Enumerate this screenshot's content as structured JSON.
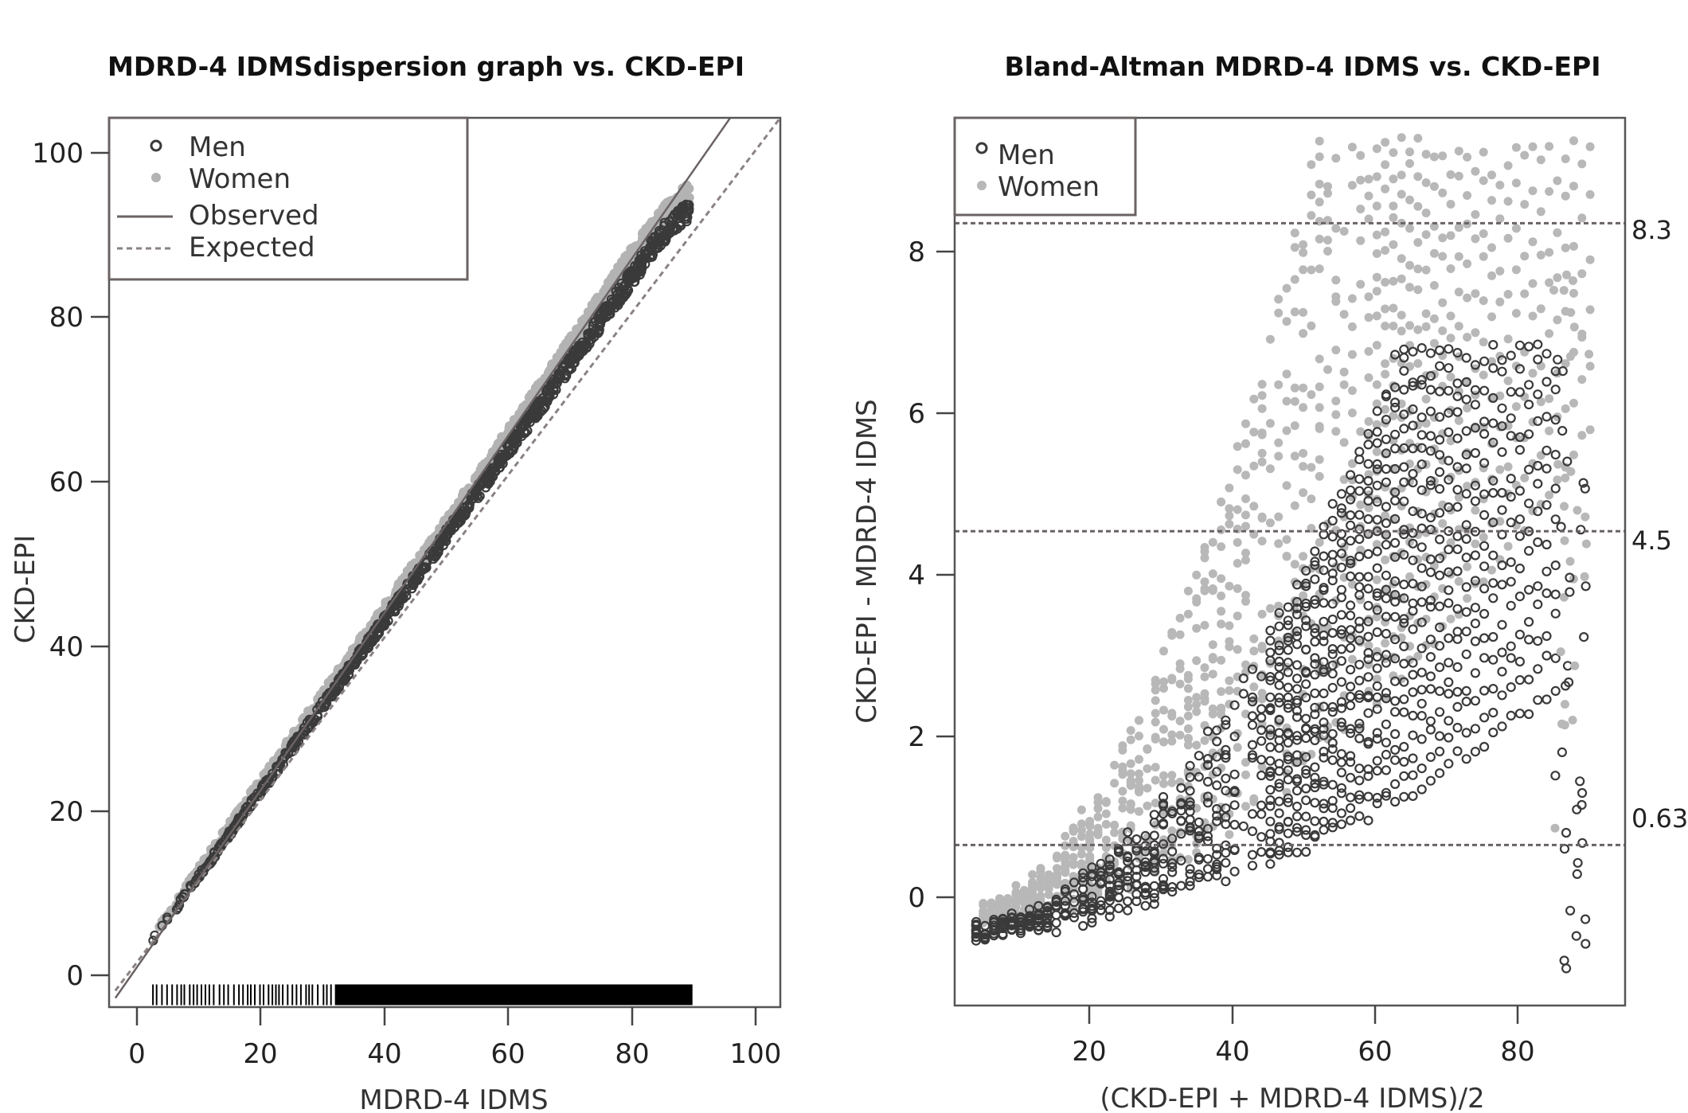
{
  "chart_data": [
    {
      "type": "scatter",
      "title": "MDRD-4 IDMSdispersion graph vs. CKD-EPI",
      "xlabel": "MDRD-4 IDMS",
      "ylabel": "CKD-EPI",
      "xlim": [
        -3,
        104
      ],
      "ylim": [
        -4,
        104
      ],
      "xticks": [
        0,
        20,
        40,
        60,
        80,
        100
      ],
      "yticks": [
        0,
        20,
        40,
        60,
        80,
        100
      ],
      "xtick_labels": [
        "0",
        "20",
        "40",
        "60",
        "80",
        "100"
      ],
      "ytick_labels": [
        "0",
        "20",
        "40",
        "60",
        "80",
        "100"
      ],
      "legend": {
        "position": "top-left",
        "entries": [
          {
            "label": "Men",
            "marker": "open-circle"
          },
          {
            "label": "Women",
            "marker": "filled-circle"
          },
          {
            "label": "Observed",
            "marker": "solid-line"
          },
          {
            "label": "Expected",
            "marker": "dashed-line"
          }
        ]
      },
      "series": [
        {
          "name": "Women",
          "color": "#b3b3b3",
          "x": [
            4,
            10,
            20,
            30,
            40,
            50,
            60,
            70,
            80,
            85,
            89
          ],
          "y": [
            4.6,
            11.2,
            22.0,
            32.6,
            43.2,
            53.8,
            64.6,
            75.5,
            86.6,
            91.5,
            94.5
          ]
        },
        {
          "name": "Men",
          "color": "#3a3a3a",
          "x": [
            4,
            10,
            20,
            30,
            40,
            50,
            60,
            70,
            80,
            85,
            89
          ],
          "y": [
            4.2,
            10.5,
            21.0,
            31.5,
            42.0,
            52.5,
            63.0,
            73.6,
            84.3,
            89.7,
            92.5
          ]
        },
        {
          "name": "Observed",
          "color": "#6b6363",
          "x": [
            -2,
            104
          ],
          "y": [
            -2.9,
            112.7
          ]
        },
        {
          "name": "Expected",
          "color": "#8a8282",
          "x": [
            -2,
            104
          ],
          "y": [
            -2,
            104
          ]
        }
      ],
      "rug": {
        "x_start": 4,
        "x_end": 90,
        "dense_from": 33,
        "y": -2.5,
        "color": "#000000"
      }
    },
    {
      "type": "scatter",
      "title": "Bland-Altman MDRD-4 IDMS vs. CKD-EPI",
      "xlabel": "(CKD-EPI + MDRD-4 IDMS)/2",
      "ylabel": "CKD-EPI - MDRD-4 IDMS",
      "xlim": [
        1,
        95
      ],
      "ylim": [
        -1.35,
        9.6
      ],
      "xticks": [
        20,
        40,
        60,
        80
      ],
      "yticks": [
        0,
        2,
        4,
        6,
        8
      ],
      "xtick_labels": [
        "20",
        "40",
        "60",
        "80"
      ],
      "ytick_labels": [
        "0",
        "2",
        "4",
        "6",
        "8"
      ],
      "legend": {
        "position": "top-left",
        "entries": [
          {
            "label": "Men",
            "marker": "open-circle"
          },
          {
            "label": "Women",
            "marker": "filled-circle"
          }
        ]
      },
      "reference_lines": [
        {
          "y": 8.3,
          "label": "8.3"
        },
        {
          "y": 4.5,
          "label": "4.5"
        },
        {
          "y": 0.63,
          "label": "0.63"
        }
      ],
      "series": [
        {
          "name": "Women",
          "color": "#b8b8b8",
          "x": [
            10,
            20,
            30,
            40,
            50,
            60,
            70,
            80,
            86,
            88,
            90
          ],
          "y": [
            0.0,
            0.5,
            1.0,
            1.7,
            2.8,
            4.2,
            5.6,
            7.0,
            8.3,
            8.9,
            9.3
          ]
        },
        {
          "name": "Men",
          "color": "#3a3a3a",
          "x": [
            5,
            15,
            25,
            35,
            45,
            55,
            65,
            75,
            85,
            88,
            88
          ],
          "y": [
            -0.4,
            -0.5,
            -0.3,
            0.2,
            1.0,
            2.0,
            3.3,
            4.8,
            6.2,
            6.8,
            -0.95
          ]
        }
      ]
    }
  ]
}
